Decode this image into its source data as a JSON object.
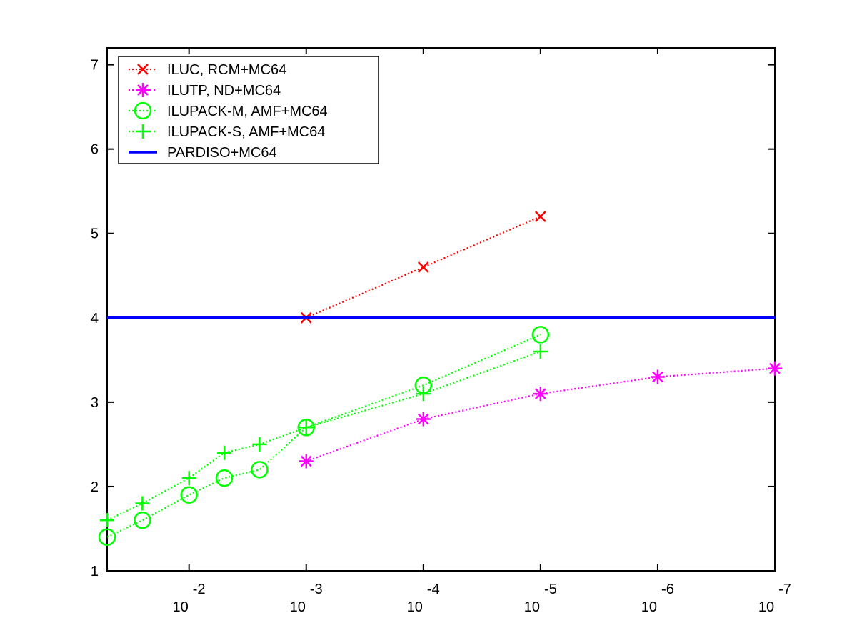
{
  "chart_data": {
    "type": "line",
    "title": "",
    "xlabel": "",
    "ylabel": "",
    "x_scale": "log",
    "x_direction": "decreasing",
    "xlim": [
      0.05,
      1e-07
    ],
    "ylim": [
      1,
      7.2
    ],
    "grid": false,
    "legend_position": "top-left",
    "x_ticks": [
      {
        "value": 0.01,
        "base": "10",
        "exp": "-2"
      },
      {
        "value": 0.001,
        "base": "10",
        "exp": "-3"
      },
      {
        "value": 0.0001,
        "base": "10",
        "exp": "-4"
      },
      {
        "value": 1e-05,
        "base": "10",
        "exp": "-5"
      },
      {
        "value": 1e-06,
        "base": "10",
        "exp": "-6"
      },
      {
        "value": 1e-07,
        "base": "10",
        "exp": "-7"
      }
    ],
    "y_ticks": [
      "1",
      "2",
      "3",
      "4",
      "5",
      "6",
      "7"
    ],
    "series": [
      {
        "name": "ILUC, RCM+MC64",
        "color": "#ff0000",
        "marker": "x",
        "line_style": "dotted",
        "x": [
          0.001,
          0.0001,
          1e-05
        ],
        "y": [
          4.0,
          4.6,
          5.2
        ]
      },
      {
        "name": "ILUTP,  ND+MC64",
        "color": "#ff00ff",
        "marker": "star",
        "line_style": "dotted",
        "x": [
          0.001,
          0.0001,
          1e-05,
          1e-06,
          1e-07
        ],
        "y": [
          2.3,
          2.8,
          3.1,
          3.3,
          3.4
        ]
      },
      {
        "name": "ILUPACK-M, AMF+MC64",
        "color": "#00ff00",
        "marker": "circle",
        "line_style": "dotted",
        "x": [
          0.05,
          0.025,
          0.01,
          0.005,
          0.0025,
          0.001,
          0.0001,
          1e-05
        ],
        "y": [
          1.4,
          1.6,
          1.9,
          2.1,
          2.2,
          2.7,
          3.2,
          3.8
        ]
      },
      {
        "name": "ILUPACK-S, AMF+MC64",
        "color": "#00ff00",
        "marker": "plus",
        "line_style": "dotted",
        "x": [
          0.05,
          0.025,
          0.01,
          0.005,
          0.0025,
          0.001,
          0.0001,
          1e-05
        ],
        "y": [
          1.6,
          1.8,
          2.1,
          2.4,
          2.5,
          2.7,
          3.1,
          3.6
        ]
      },
      {
        "name": "PARDISO+MC64",
        "color": "#0000ff",
        "marker": "none",
        "line_style": "solid",
        "x": [
          0.05,
          1e-07
        ],
        "y": [
          4.0,
          4.0
        ]
      }
    ]
  }
}
